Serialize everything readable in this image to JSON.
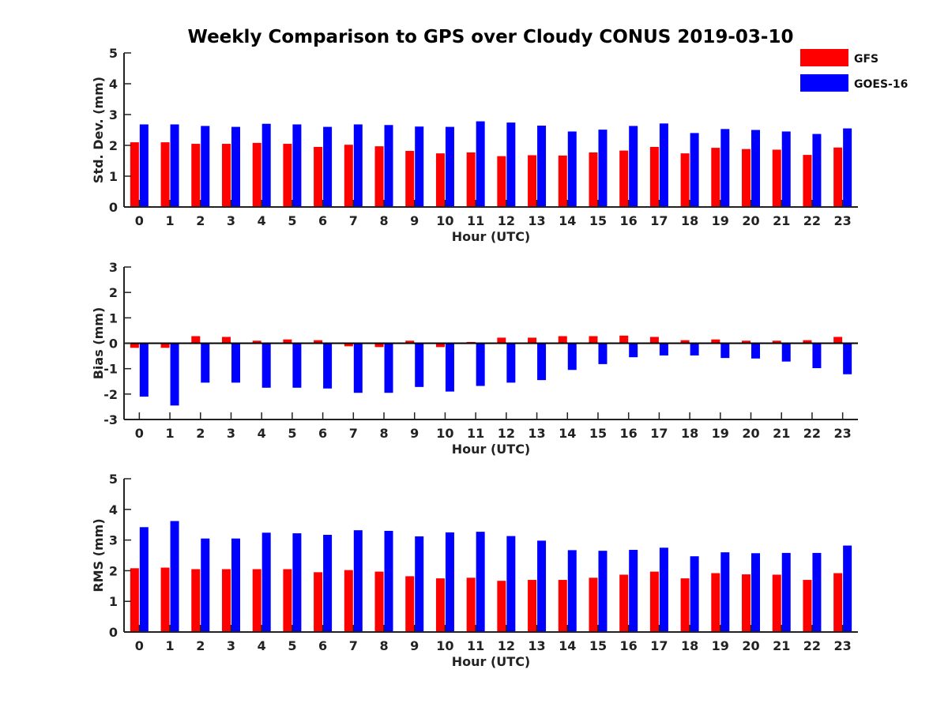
{
  "title": "Weekly Comparison to GPS over Cloudy CONUS 2019-03-10",
  "legend": {
    "position": "top-right",
    "entries": [
      {
        "label": "GFS",
        "color": "#ff0000"
      },
      {
        "label": "GOES-16",
        "color": "#0000ff"
      }
    ]
  },
  "chart_data": [
    {
      "type": "bar",
      "title": "Weekly Comparison to GPS over Cloudy CONUS 2019-03-10",
      "xlabel": "Hour (UTC)",
      "ylabel": "Std. Dev. (mm)",
      "ylim": [
        0,
        5
      ],
      "yticks": [
        "0",
        "1",
        "2",
        "3",
        "4",
        "5"
      ],
      "grid": false,
      "categories": [
        "0",
        "1",
        "2",
        "3",
        "4",
        "5",
        "6",
        "7",
        "8",
        "9",
        "10",
        "11",
        "12",
        "13",
        "14",
        "15",
        "16",
        "17",
        "18",
        "19",
        "20",
        "21",
        "22",
        "23"
      ],
      "series": [
        {
          "name": "GFS",
          "color": "#ff0000",
          "values": [
            2.1,
            2.1,
            2.05,
            2.05,
            2.08,
            2.05,
            1.95,
            2.02,
            1.97,
            1.82,
            1.74,
            1.77,
            1.65,
            1.68,
            1.67,
            1.77,
            1.83,
            1.95,
            1.74,
            1.92,
            1.88,
            1.86,
            1.69,
            1.93
          ]
        },
        {
          "name": "GOES-16",
          "color": "#0000ff",
          "values": [
            2.68,
            2.68,
            2.63,
            2.6,
            2.7,
            2.68,
            2.6,
            2.68,
            2.66,
            2.61,
            2.6,
            2.78,
            2.74,
            2.64,
            2.45,
            2.51,
            2.63,
            2.71,
            2.4,
            2.53,
            2.5,
            2.45,
            2.37,
            2.55
          ]
        }
      ]
    },
    {
      "type": "bar",
      "xlabel": "Hour (UTC)",
      "ylabel": "Bias (mm)",
      "ylim": [
        -3,
        3
      ],
      "yticks": [
        "-3",
        "-2",
        "-1",
        "0",
        "1",
        "2",
        "3"
      ],
      "grid": false,
      "zero_line": true,
      "categories": [
        "0",
        "1",
        "2",
        "3",
        "4",
        "5",
        "6",
        "7",
        "8",
        "9",
        "10",
        "11",
        "12",
        "13",
        "14",
        "15",
        "16",
        "17",
        "18",
        "19",
        "20",
        "21",
        "22",
        "23"
      ],
      "series": [
        {
          "name": "GFS",
          "color": "#ff0000",
          "values": [
            -0.18,
            -0.18,
            0.28,
            0.25,
            0.1,
            0.15,
            0.12,
            -0.12,
            -0.15,
            0.1,
            -0.15,
            0.05,
            0.22,
            0.22,
            0.28,
            0.28,
            0.3,
            0.25,
            0.12,
            0.15,
            0.1,
            0.1,
            0.12,
            0.25
          ]
        },
        {
          "name": "GOES-16",
          "color": "#0000ff",
          "values": [
            -2.1,
            -2.45,
            -1.55,
            -1.55,
            -1.75,
            -1.75,
            -1.78,
            -1.95,
            -1.95,
            -1.72,
            -1.9,
            -1.68,
            -1.55,
            -1.45,
            -1.05,
            -0.82,
            -0.55,
            -0.48,
            -0.48,
            -0.58,
            -0.6,
            -0.72,
            -0.98,
            -1.22
          ]
        }
      ]
    },
    {
      "type": "bar",
      "xlabel": "Hour (UTC)",
      "ylabel": "RMS (mm)",
      "ylim": [
        0,
        5
      ],
      "yticks": [
        "0",
        "1",
        "2",
        "3",
        "4",
        "5"
      ],
      "grid": false,
      "categories": [
        "0",
        "1",
        "2",
        "3",
        "4",
        "5",
        "6",
        "7",
        "8",
        "9",
        "10",
        "11",
        "12",
        "13",
        "14",
        "15",
        "16",
        "17",
        "18",
        "19",
        "20",
        "21",
        "22",
        "23"
      ],
      "series": [
        {
          "name": "GFS",
          "color": "#ff0000",
          "values": [
            2.08,
            2.1,
            2.05,
            2.05,
            2.05,
            2.05,
            1.95,
            2.02,
            1.97,
            1.82,
            1.75,
            1.77,
            1.67,
            1.7,
            1.7,
            1.77,
            1.87,
            1.97,
            1.75,
            1.92,
            1.88,
            1.87,
            1.7,
            1.92
          ]
        },
        {
          "name": "GOES-16",
          "color": "#0000ff",
          "values": [
            3.42,
            3.62,
            3.05,
            3.05,
            3.24,
            3.22,
            3.17,
            3.32,
            3.3,
            3.12,
            3.25,
            3.27,
            3.13,
            2.98,
            2.67,
            2.65,
            2.68,
            2.75,
            2.47,
            2.6,
            2.57,
            2.58,
            2.58,
            2.82
          ]
        }
      ]
    }
  ]
}
